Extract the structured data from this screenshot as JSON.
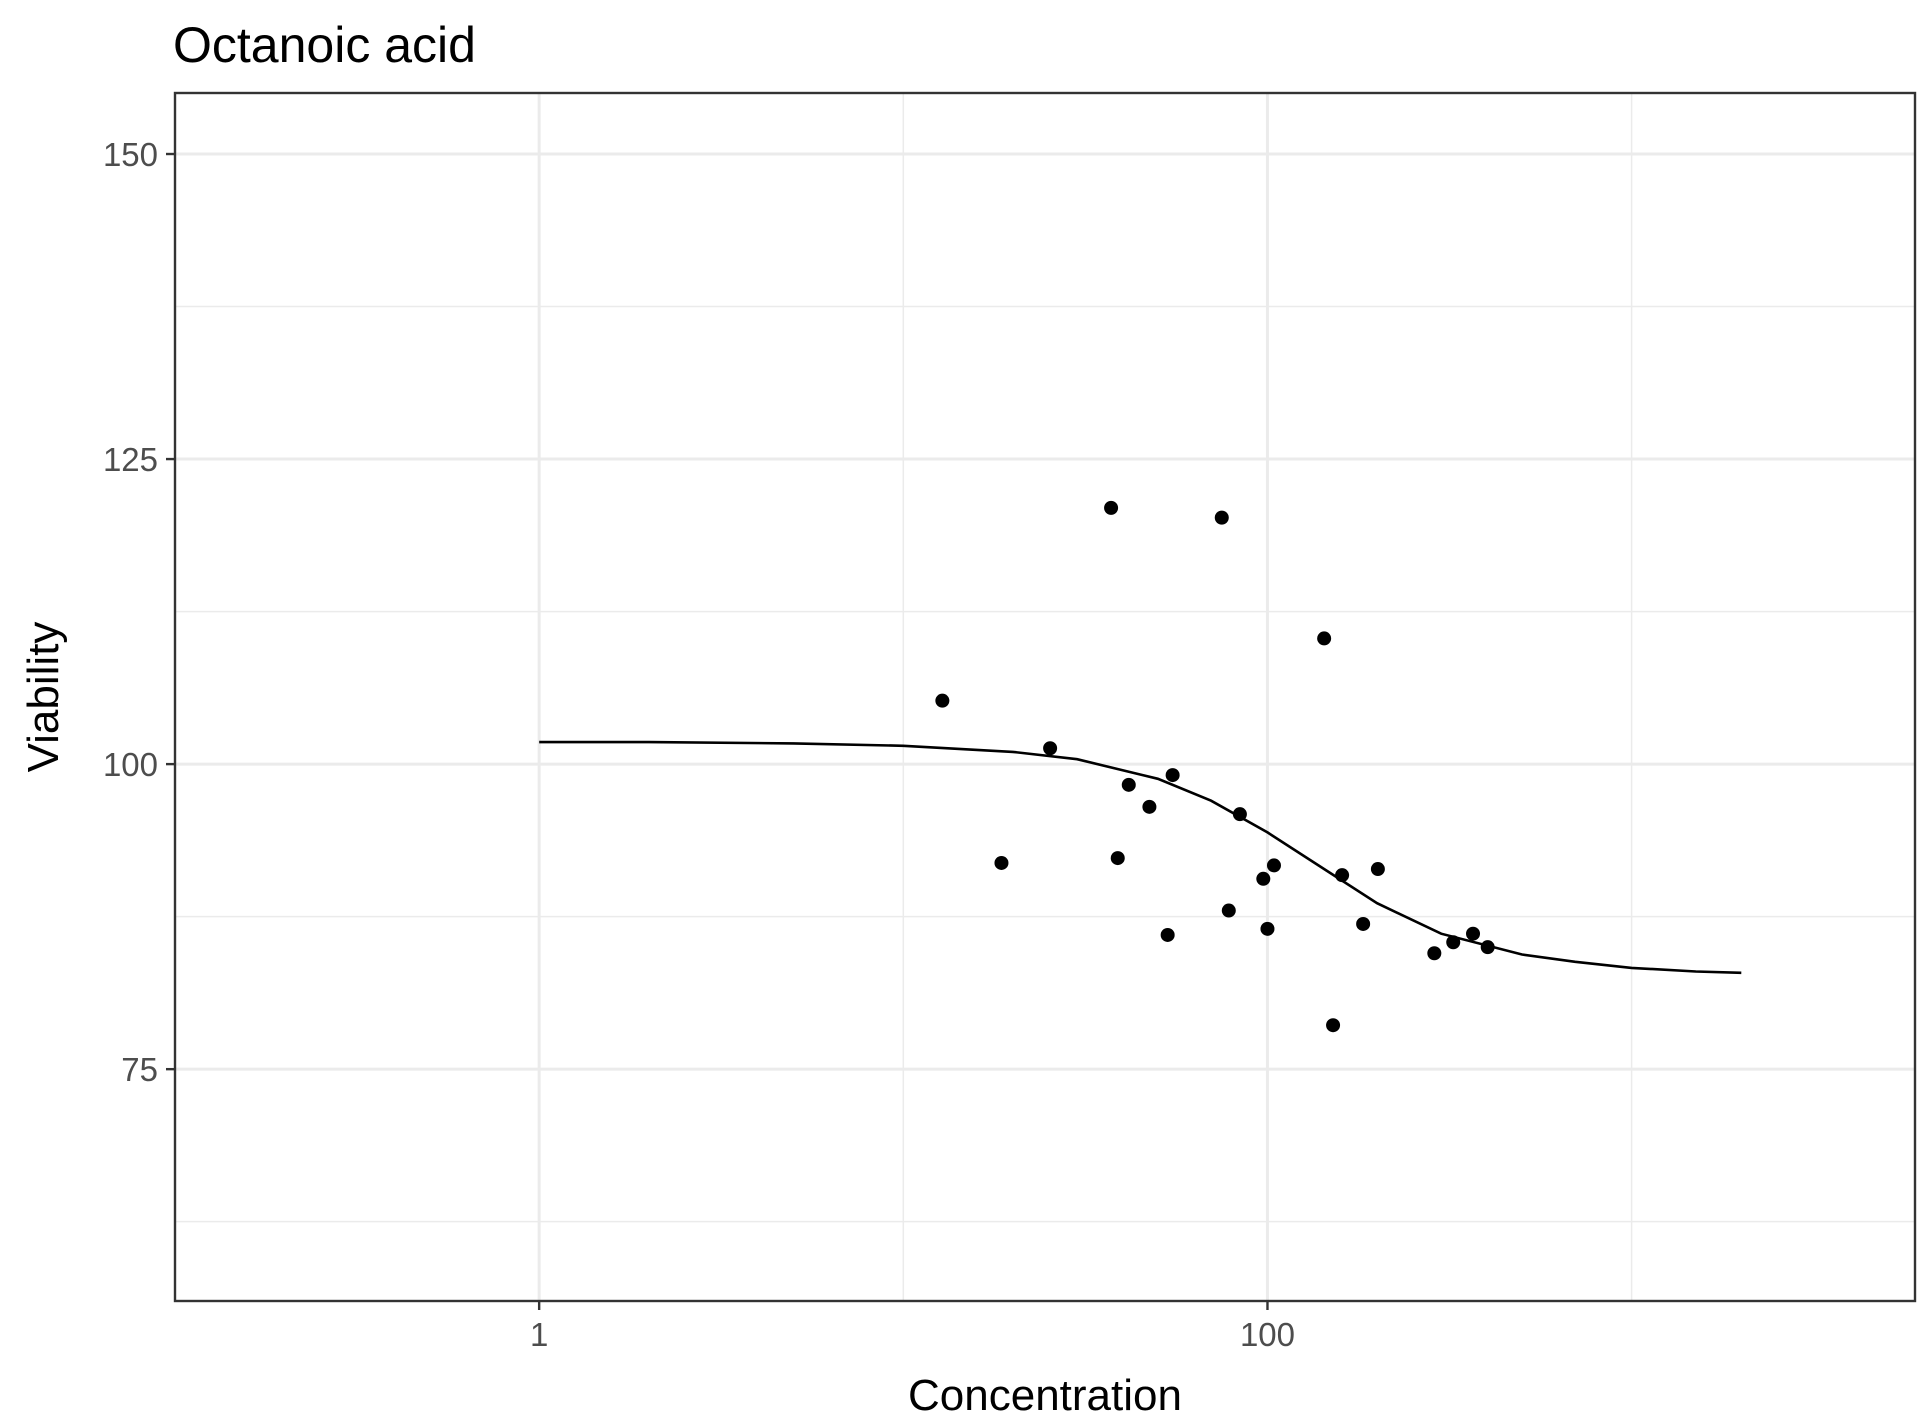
{
  "chart_data": {
    "type": "scatter",
    "title": "Octanoic acid",
    "xlabel": "Concentration",
    "ylabel": "Viability",
    "x_scale": "log10",
    "xlim": [
      0.1,
      6000
    ],
    "ylim": [
      56,
      155
    ],
    "x_ticks": [
      {
        "value": 1,
        "label": "1"
      },
      {
        "value": 100,
        "label": "100"
      }
    ],
    "x_minor_ticks": [
      0.1,
      10,
      1000
    ],
    "y_ticks": [
      {
        "value": 75,
        "label": "75"
      },
      {
        "value": 100,
        "label": "100"
      },
      {
        "value": 125,
        "label": "125"
      },
      {
        "value": 150,
        "label": "150"
      }
    ],
    "y_minor_ticks": [
      62.5,
      87.5,
      112.5,
      137.5
    ],
    "grid": true,
    "legend": "none",
    "points": [
      {
        "x": 12.8,
        "y": 105.2
      },
      {
        "x": 18.6,
        "y": 91.9
      },
      {
        "x": 25.3,
        "y": 101.3
      },
      {
        "x": 37.2,
        "y": 121.0
      },
      {
        "x": 38.8,
        "y": 92.3
      },
      {
        "x": 41.6,
        "y": 98.3
      },
      {
        "x": 47.4,
        "y": 96.5
      },
      {
        "x": 53.2,
        "y": 86.0
      },
      {
        "x": 54.9,
        "y": 99.1
      },
      {
        "x": 74.9,
        "y": 120.2
      },
      {
        "x": 78.3,
        "y": 88.0
      },
      {
        "x": 84.0,
        "y": 95.9
      },
      {
        "x": 97.4,
        "y": 90.6
      },
      {
        "x": 100.0,
        "y": 86.5
      },
      {
        "x": 104.2,
        "y": 91.7
      },
      {
        "x": 143.1,
        "y": 110.3
      },
      {
        "x": 151.4,
        "y": 78.6
      },
      {
        "x": 160.3,
        "y": 90.9
      },
      {
        "x": 183.1,
        "y": 86.9
      },
      {
        "x": 201.0,
        "y": 91.4
      },
      {
        "x": 287.2,
        "y": 84.5
      },
      {
        "x": 323.7,
        "y": 85.4
      },
      {
        "x": 366.8,
        "y": 86.1
      },
      {
        "x": 402.5,
        "y": 85.0
      }
    ],
    "fit_curve": [
      {
        "x": 1,
        "y": 101.8
      },
      {
        "x": 2,
        "y": 101.8
      },
      {
        "x": 5,
        "y": 101.7
      },
      {
        "x": 10,
        "y": 101.5
      },
      {
        "x": 20,
        "y": 101.0
      },
      {
        "x": 30,
        "y": 100.4
      },
      {
        "x": 50,
        "y": 98.8
      },
      {
        "x": 70,
        "y": 97.0
      },
      {
        "x": 100,
        "y": 94.4
      },
      {
        "x": 150,
        "y": 91.0
      },
      {
        "x": 200,
        "y": 88.6
      },
      {
        "x": 300,
        "y": 86.1
      },
      {
        "x": 500,
        "y": 84.4
      },
      {
        "x": 700,
        "y": 83.8
      },
      {
        "x": 1000,
        "y": 83.3
      },
      {
        "x": 1500,
        "y": 83.0
      },
      {
        "x": 2000,
        "y": 82.9
      }
    ]
  }
}
